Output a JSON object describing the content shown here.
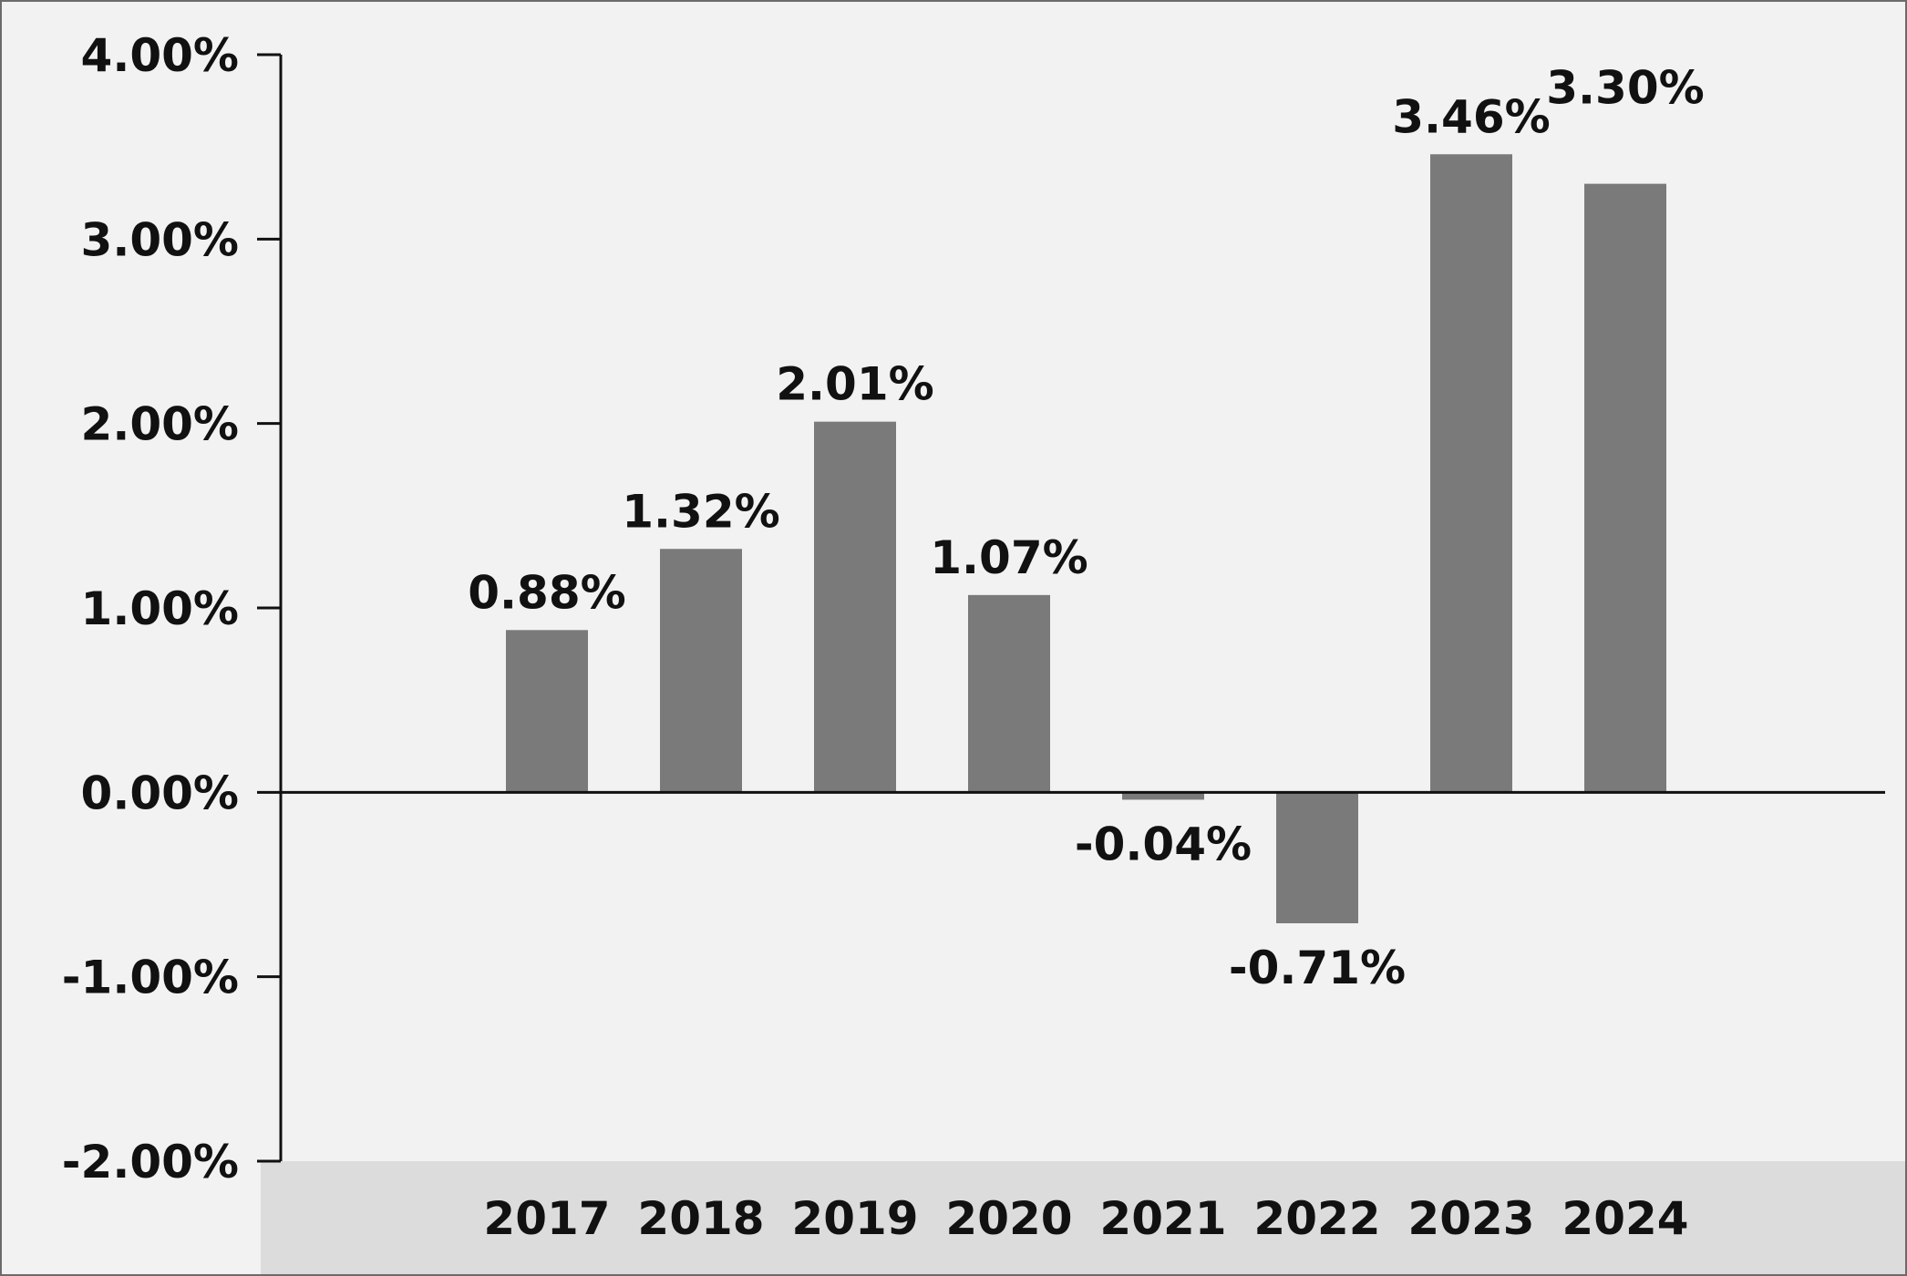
{
  "chart_data": {
    "type": "bar",
    "title": "",
    "xlabel": "",
    "ylabel": "",
    "categories": [
      "2017",
      "2018",
      "2019",
      "2020",
      "2021",
      "2022",
      "2023",
      "2024"
    ],
    "values": [
      0.88,
      1.32,
      2.01,
      1.07,
      -0.04,
      -0.71,
      3.46,
      3.3
    ],
    "data_labels": [
      "0.88%",
      "1.32%",
      "2.01%",
      "1.07%",
      "-0.04%",
      "-0.71%",
      "3.46%",
      "3.30%"
    ],
    "ylim": [
      -2,
      4
    ],
    "yticks": [
      4,
      3,
      2,
      1,
      0,
      -1,
      -2
    ],
    "ytick_labels": [
      "4.00%",
      "3.00%",
      "2.00%",
      "1.00%",
      "0.00%",
      "-1.00%",
      "-2.00%"
    ],
    "grid": false,
    "legend": "none",
    "colors": {
      "bar": "#7a7a7a",
      "background": "#f1f2f1",
      "category_band": "#dcdcdc",
      "axis": "#111111",
      "frame": "#6b6b6b"
    }
  }
}
